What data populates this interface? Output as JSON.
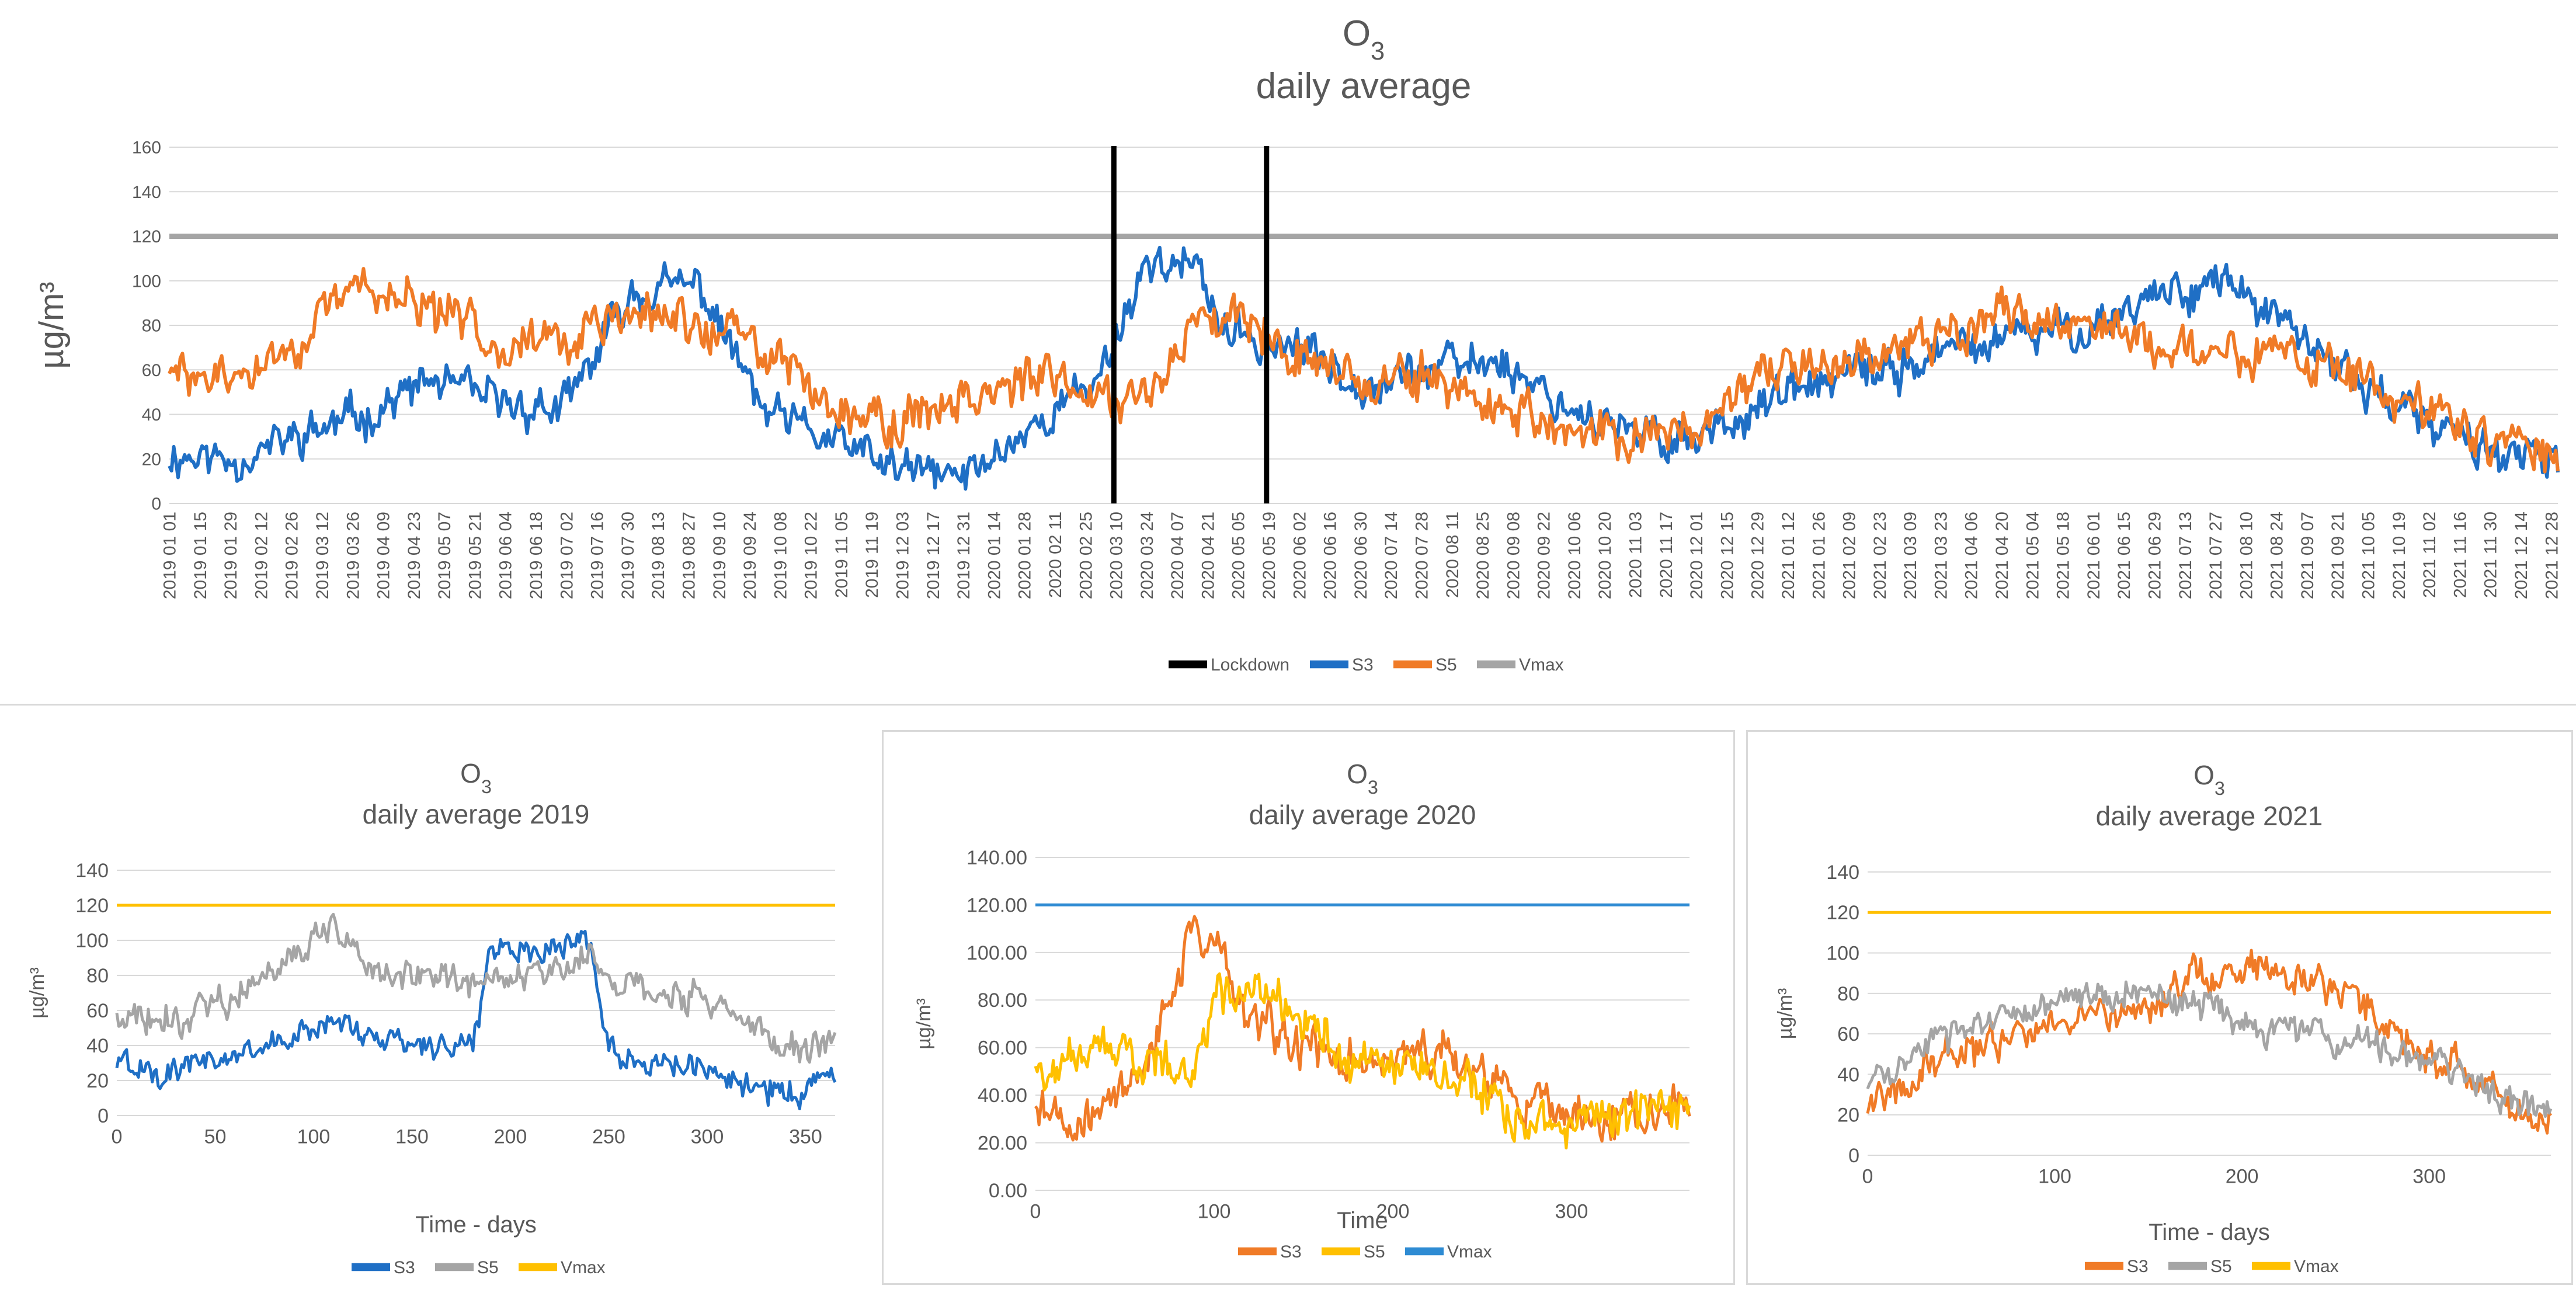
{
  "chart_data": [
    {
      "type": "line",
      "title": "O₃",
      "subtitle": "daily average",
      "xlabel": "",
      "ylabel": "µg/m³",
      "ylim": [
        0,
        160
      ],
      "yticks": [
        0,
        20,
        40,
        60,
        80,
        100,
        120,
        140,
        160
      ],
      "x_start": "2019-01-01",
      "x_end": "2021-12-31",
      "x_tick_labels": [
        "2019-01-01",
        "2019-01-15",
        "2019-01-29",
        "2019-02-12",
        "2019-02-26",
        "2019-03-12",
        "2019-03-26",
        "2019-04-09",
        "2019-04-23",
        "2019-05-07",
        "2019-05-21",
        "2019-06-04",
        "2019-06-18",
        "2019-07-02",
        "2019-07-16",
        "2019-07-30",
        "2019-08-13",
        "2019-08-27",
        "2019-09-10",
        "2019-09-24",
        "2019-10-08",
        "2019-10-22",
        "2019-11-05",
        "2019-11-19",
        "2019-12-03",
        "2019-12-17",
        "2019-12-31",
        "2020-01-14",
        "2020-01-28",
        "2020-02-11",
        "2020-02-25",
        "2020-03-10",
        "2020-03-24",
        "2020-04-07",
        "2020-04-21",
        "2020-05-05",
        "2020-05-19",
        "2020-06-02",
        "2020-06-16",
        "2020-06-30",
        "2020-07-14",
        "2020-07-28",
        "2020-08-11",
        "2020-08-25",
        "2020-09-08",
        "2020-09-22",
        "2020-10-06",
        "2020-10-20",
        "2020-11-03",
        "2020-11-17",
        "2020-12-01",
        "2020-12-15",
        "2020-12-29",
        "2021-01-12",
        "2021-01-26",
        "2021-02-09",
        "2021-02-23",
        "2021-03-09",
        "2021-03-23",
        "2021-04-06",
        "2021-04-20",
        "2021-05-04",
        "2021-05-18",
        "2021-06-01",
        "2021-06-15",
        "2021-06-29",
        "2021-07-13",
        "2021-07-27",
        "2021-08-10",
        "2021-08-24",
        "2021-09-07",
        "2021-09-21",
        "2021-10-05",
        "2021-10-19",
        "2021-11-02",
        "2021-11-16",
        "2021-11-30",
        "2021-12-14",
        "2021-12-28"
      ],
      "lockdown_dates": [
        "2020-03-09",
        "2020-05-18"
      ],
      "vmax": 120,
      "legend_position": "bottom",
      "legend": [
        "Lockdown",
        "S3",
        "S5",
        "Vmax"
      ],
      "colors": {
        "Lockdown": "#000000",
        "S3": "#1f6fc5",
        "S5": "#f07b27",
        "Vmax": "#a5a5a5"
      },
      "series": [
        {
          "name": "S3",
          "anchors_x": [
            "2019-01-01",
            "2019-02-01",
            "2019-03-01",
            "2019-04-01",
            "2019-05-01",
            "2019-06-01",
            "2019-07-01",
            "2019-08-01",
            "2019-09-01",
            "2019-10-01",
            "2019-11-01",
            "2019-12-01",
            "2020-01-01",
            "2020-02-01",
            "2020-03-01",
            "2020-03-25",
            "2020-04-15",
            "2020-05-01",
            "2020-06-01",
            "2020-07-01",
            "2020-08-01",
            "2020-09-01",
            "2020-10-01",
            "2020-11-01",
            "2020-12-01",
            "2021-01-01",
            "2021-02-01",
            "2021-03-01",
            "2021-04-01",
            "2021-05-01",
            "2021-06-01",
            "2021-07-01",
            "2021-08-01",
            "2021-09-01",
            "2021-10-01",
            "2021-11-01",
            "2021-12-01",
            "2021-12-31"
          ],
          "anchors_y": [
            22,
            20,
            30,
            40,
            55,
            45,
            42,
            95,
            98,
            40,
            28,
            15,
            12,
            35,
            55,
            110,
            105,
            75,
            70,
            55,
            60,
            65,
            45,
            30,
            30,
            45,
            55,
            60,
            70,
            75,
            80,
            95,
            100,
            75,
            55,
            35,
            25,
            15
          ],
          "spread": 14
        },
        {
          "name": "S5",
          "anchors_x": [
            "2019-01-01",
            "2019-02-01",
            "2019-03-01",
            "2019-04-01",
            "2019-05-01",
            "2019-06-01",
            "2019-07-01",
            "2019-08-01",
            "2019-09-01",
            "2019-10-01",
            "2019-11-01",
            "2019-12-01",
            "2020-01-01",
            "2020-02-01",
            "2020-03-01",
            "2020-03-25",
            "2020-04-15",
            "2020-05-01",
            "2020-06-01",
            "2020-07-01",
            "2020-08-01",
            "2020-09-01",
            "2020-10-01",
            "2020-11-01",
            "2020-12-01",
            "2021-01-01",
            "2021-02-01",
            "2021-03-01",
            "2021-04-01",
            "2021-05-01",
            "2021-06-01",
            "2021-07-01",
            "2021-08-01",
            "2021-09-01",
            "2021-10-01",
            "2021-11-01",
            "2021-12-01",
            "2021-12-31"
          ],
          "anchors_y": [
            58,
            55,
            72,
            100,
            85,
            75,
            72,
            85,
            80,
            70,
            45,
            35,
            50,
            55,
            50,
            50,
            80,
            90,
            70,
            55,
            55,
            45,
            30,
            30,
            35,
            55,
            65,
            70,
            80,
            85,
            80,
            70,
            70,
            65,
            55,
            40,
            30,
            20
          ],
          "spread": 16
        }
      ]
    },
    {
      "type": "line",
      "title": "O₃",
      "subtitle": "daily average 2019",
      "xlabel": "Time - days",
      "ylabel": "µg/m³",
      "xlim": [
        0,
        365
      ],
      "xticks": [
        0,
        50,
        100,
        150,
        200,
        250,
        300,
        350
      ],
      "ylim": [
        0,
        140
      ],
      "yticks": [
        0,
        20,
        40,
        60,
        80,
        100,
        120,
        140
      ],
      "vmax": 120,
      "legend_position": "bottom",
      "legend": [
        "S3",
        "S5",
        "Vmax"
      ],
      "colors": {
        "S3": "#1f6fc5",
        "S5": "#a5a5a5",
        "Vmax": "#ffc000"
      },
      "series": [
        {
          "name": "S3",
          "anchors_x": [
            0,
            30,
            60,
            90,
            110,
            130,
            160,
            180,
            190,
            210,
            240,
            250,
            270,
            300,
            330,
            350,
            360,
            365
          ],
          "anchors_y": [
            30,
            25,
            35,
            45,
            55,
            45,
            40,
            40,
            95,
            95,
            100,
            40,
            30,
            25,
            15,
            10,
            30,
            20
          ],
          "spread": 12
        },
        {
          "name": "S5",
          "anchors_x": [
            0,
            30,
            60,
            90,
            110,
            130,
            160,
            180,
            210,
            240,
            270,
            300,
            330,
            350,
            365
          ],
          "anchors_y": [
            60,
            55,
            70,
            95,
            110,
            85,
            78,
            75,
            80,
            90,
            70,
            65,
            45,
            35,
            40
          ],
          "spread": 14
        }
      ]
    },
    {
      "type": "line",
      "title": "O₃",
      "subtitle": "daily average 2020",
      "xlabel": "Time",
      "ylabel": "µg/m³",
      "xlim": [
        0,
        366
      ],
      "xticks": [
        0,
        100,
        200,
        300
      ],
      "ylim": [
        0,
        140
      ],
      "ytick_labels": [
        "0.00",
        "20.00",
        "40.00",
        "60.00",
        "80.00",
        "100.00",
        "120.00",
        "140.00"
      ],
      "yticks": [
        0,
        20,
        40,
        60,
        80,
        100,
        120,
        140
      ],
      "vmax": 120,
      "legend_position": "bottom",
      "legend": [
        "S3",
        "S5",
        "Vmax"
      ],
      "colors": {
        "S3": "#f07b27",
        "S5": "#ffc000",
        "Vmax": "#2e8bd3"
      },
      "series": [
        {
          "name": "S3",
          "anchors_x": [
            0,
            20,
            40,
            60,
            75,
            90,
            100,
            120,
            150,
            180,
            210,
            240,
            270,
            300,
            330,
            366
          ],
          "anchors_y": [
            35,
            30,
            35,
            50,
            80,
            110,
            100,
            75,
            60,
            55,
            60,
            55,
            40,
            30,
            30,
            35
          ],
          "spread": 14
        },
        {
          "name": "S5",
          "anchors_x": [
            0,
            20,
            40,
            60,
            75,
            90,
            100,
            120,
            150,
            180,
            210,
            240,
            270,
            300,
            330,
            366
          ],
          "anchors_y": [
            50,
            55,
            60,
            55,
            52,
            50,
            80,
            85,
            70,
            55,
            50,
            45,
            30,
            30,
            32,
            35
          ],
          "spread": 14
        }
      ]
    },
    {
      "type": "line",
      "title": "O₃",
      "subtitle": "daily average 2021",
      "xlabel": "Time - days",
      "ylabel": "µg/m³",
      "xlim": [
        0,
        365
      ],
      "xticks": [
        0,
        100,
        200,
        300
      ],
      "ylim": [
        0,
        140
      ],
      "yticks": [
        0,
        20,
        40,
        60,
        80,
        100,
        120,
        140
      ],
      "vmax": 120,
      "legend_position": "bottom",
      "legend": [
        "S3",
        "S5",
        "Vmax"
      ],
      "colors": {
        "S3": "#f07b27",
        "S5": "#a5a5a5",
        "Vmax": "#ffc000"
      },
      "series": [
        {
          "name": "S3",
          "anchors_x": [
            0,
            30,
            60,
            90,
            120,
            150,
            180,
            210,
            240,
            270,
            300,
            330,
            350,
            365
          ],
          "anchors_y": [
            25,
            40,
            55,
            60,
            70,
            75,
            90,
            95,
            85,
            70,
            50,
            35,
            20,
            15
          ],
          "spread": 14
        },
        {
          "name": "S5",
          "anchors_x": [
            0,
            30,
            60,
            90,
            120,
            150,
            180,
            210,
            240,
            270,
            300,
            330,
            350,
            365
          ],
          "anchors_y": [
            35,
            55,
            65,
            75,
            80,
            80,
            75,
            65,
            60,
            55,
            50,
            35,
            25,
            20
          ],
          "spread": 12
        }
      ]
    }
  ]
}
